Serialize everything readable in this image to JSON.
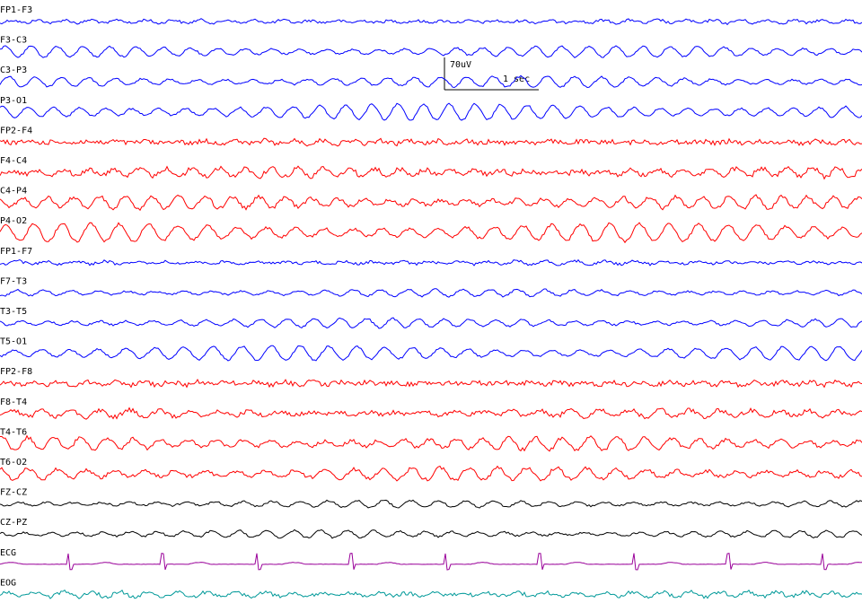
{
  "channels": [
    {
      "label": "FP1-F3",
      "color": "#0000ff"
    },
    {
      "label": "F3-C3",
      "color": "#0000ff"
    },
    {
      "label": "C3-P3",
      "color": "#0000ff"
    },
    {
      "label": "P3-O1",
      "color": "#0000ff"
    },
    {
      "label": "FP2-F4",
      "color": "#ff0000"
    },
    {
      "label": "F4-C4",
      "color": "#ff0000"
    },
    {
      "label": "C4-P4",
      "color": "#ff0000"
    },
    {
      "label": "P4-O2",
      "color": "#ff0000"
    },
    {
      "label": "FP1-F7",
      "color": "#0000ff"
    },
    {
      "label": "F7-T3",
      "color": "#0000ff"
    },
    {
      "label": "T3-T5",
      "color": "#0000ff"
    },
    {
      "label": "T5-O1",
      "color": "#0000ff"
    },
    {
      "label": "FP2-F8",
      "color": "#ff0000"
    },
    {
      "label": "F8-T4",
      "color": "#ff0000"
    },
    {
      "label": "T4-T6",
      "color": "#ff0000"
    },
    {
      "label": "T6-O2",
      "color": "#ff0000"
    },
    {
      "label": "FZ-CZ",
      "color": "#000000"
    },
    {
      "label": "CZ-PZ",
      "color": "#000000"
    },
    {
      "label": "ECG",
      "color": "#990099"
    },
    {
      "label": "EOG",
      "color": "#009999"
    }
  ],
  "scale": {
    "amplitude": "70uV",
    "time": "1 sec"
  }
}
